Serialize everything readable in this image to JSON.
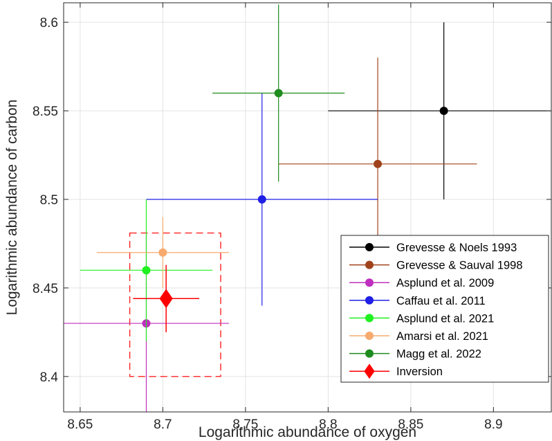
{
  "chart_data": {
    "type": "scatter",
    "title": "",
    "xlabel": "Logarithmic abundance of oxygen",
    "ylabel": "Logarithmic abundance of carbon",
    "xlim": [
      8.64,
      8.935
    ],
    "ylim": [
      8.38,
      8.611
    ],
    "xticks": [
      8.65,
      8.7,
      8.75,
      8.8,
      8.85,
      8.9
    ],
    "yticks": [
      8.4,
      8.45,
      8.5,
      8.55,
      8.6
    ],
    "xtick_labels": [
      "8.65",
      "8.7",
      "8.75",
      "8.8",
      "8.85",
      "8.9"
    ],
    "ytick_labels": [
      "8.4",
      "8.45",
      "8.5",
      "8.55",
      "8.6"
    ],
    "grid": true,
    "legend_position": "bottom-right",
    "series": [
      {
        "name": "Grevesse & Noels 1993",
        "color": "#000000",
        "marker": "circle",
        "x": 8.87,
        "y": 8.55,
        "xerr": 0.07,
        "yerr": 0.05
      },
      {
        "name": "Grevesse & Sauval 1998",
        "color": "#a0431c",
        "marker": "circle",
        "x": 8.83,
        "y": 8.52,
        "xerr": 0.06,
        "yerr": 0.06
      },
      {
        "name": "Asplund et al. 2009",
        "color": "#bf2fbf",
        "marker": "circle",
        "x": 8.69,
        "y": 8.43,
        "xerr": 0.05,
        "yerr": 0.05
      },
      {
        "name": "Caffau et al. 2011",
        "color": "#1f1fe6",
        "marker": "circle",
        "x": 8.76,
        "y": 8.5,
        "xerr": 0.07,
        "yerr": 0.06
      },
      {
        "name": "Asplund et al. 2021",
        "color": "#1ff01f",
        "marker": "circle",
        "x": 8.69,
        "y": 8.46,
        "xerr": 0.04,
        "yerr": 0.04
      },
      {
        "name": "Amarsi et al. 2021",
        "color": "#f7aa6e",
        "marker": "circle",
        "x": 8.7,
        "y": 8.47,
        "xerr": 0.04,
        "yerr": 0.02
      },
      {
        "name": "Magg et al. 2022",
        "color": "#1e8c1e",
        "marker": "circle",
        "x": 8.77,
        "y": 8.56,
        "xerr": 0.04,
        "yerr": 0.05
      },
      {
        "name": "Inversion",
        "color": "#ff0000",
        "marker": "diamond",
        "x": 8.702,
        "y": 8.444,
        "xerr": 0.02,
        "yerr": 0.019
      }
    ],
    "inversion_box": {
      "color": "#ff2020",
      "x": [
        8.68,
        8.735
      ],
      "y": [
        8.4,
        8.481
      ]
    }
  }
}
